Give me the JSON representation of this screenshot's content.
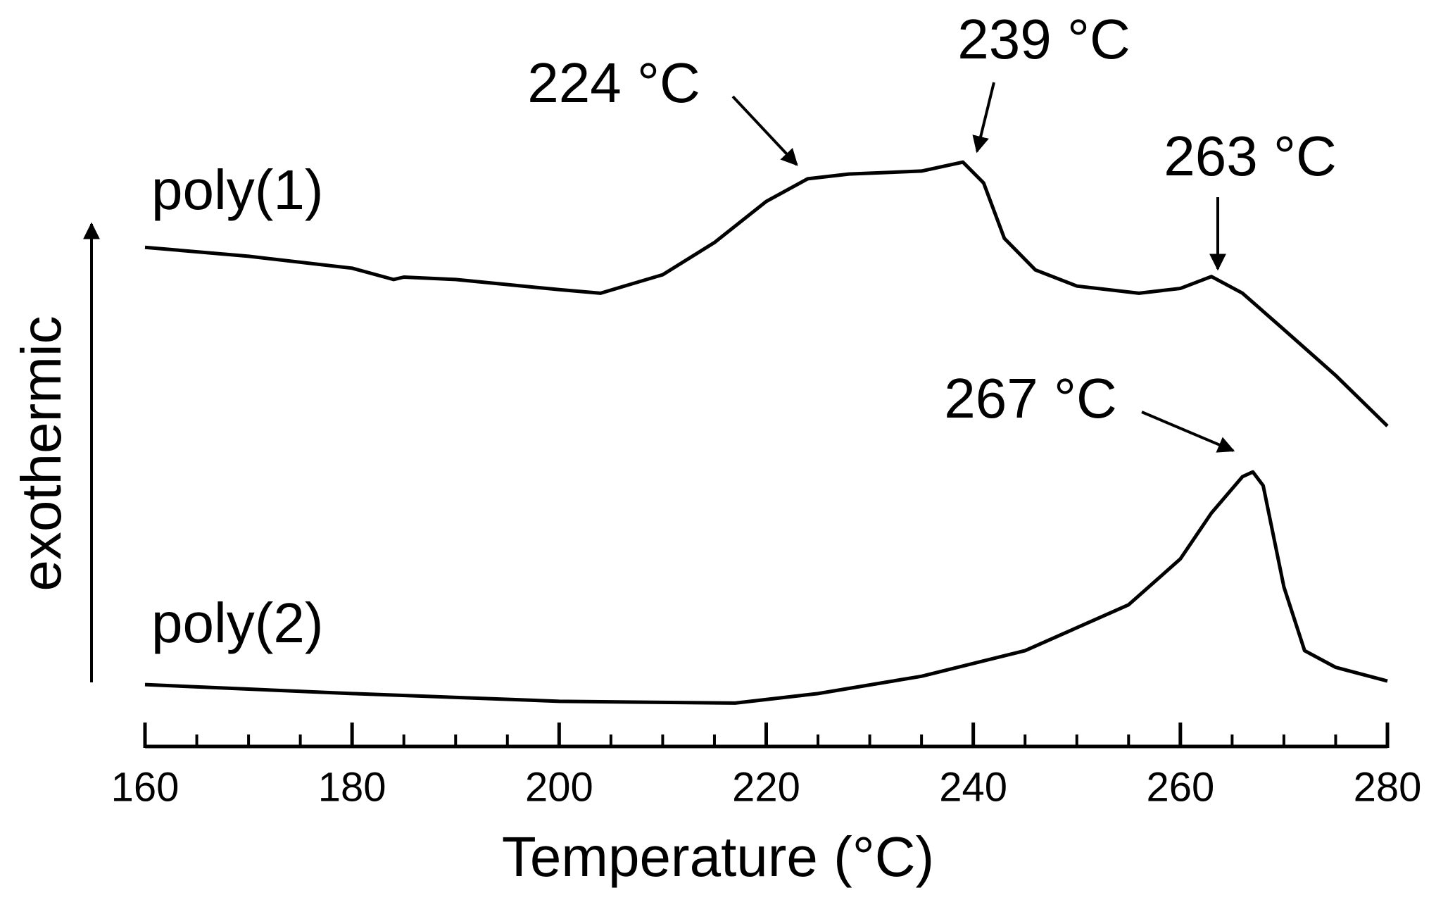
{
  "chart_data": {
    "type": "line",
    "x_label": "Temperature (°C)",
    "y_label": "exothermic",
    "xlim": [
      160,
      280
    ],
    "xticks": [
      160,
      180,
      200,
      220,
      240,
      260,
      280
    ],
    "xticks_minor": [
      165,
      170,
      175,
      185,
      190,
      195,
      205,
      210,
      215,
      225,
      230,
      235,
      245,
      250,
      255,
      265,
      270,
      275
    ],
    "ylim": [
      0,
      100
    ],
    "color": "#000000",
    "series": [
      {
        "name": "poly(1)",
        "color": "#000000",
        "x": [
          160,
          170,
          180,
          184,
          185,
          190,
          200,
          204,
          210,
          215,
          220,
          224,
          228,
          235,
          239,
          241,
          243,
          246,
          250,
          256,
          260,
          263,
          266,
          270,
          275,
          280
        ],
        "values": [
          80,
          78.5,
          76.5,
          74.6,
          75,
          74.6,
          72.9,
          72.3,
          75.4,
          80.8,
          87.7,
          91.5,
          92.3,
          92.8,
          94.3,
          90.8,
          81.5,
          76.2,
          73.5,
          72.3,
          73.1,
          75.1,
          72.3,
          66.2,
          58.5,
          50
        ]
      },
      {
        "name": "poly(2)",
        "color": "#000000",
        "x": [
          160,
          180,
          200,
          217,
          225,
          235,
          245,
          255,
          260,
          263,
          266,
          267,
          268,
          270,
          272,
          275,
          280
        ],
        "values": [
          6.6,
          5.1,
          3.8,
          3.5,
          5.1,
          8,
          12.3,
          20,
          27.7,
          35.4,
          41.5,
          42.3,
          40,
          23,
          12.3,
          9.5,
          7.2
        ]
      }
    ],
    "annotations": [
      {
        "text": "224 °C"
      },
      {
        "text": "239 °C"
      },
      {
        "text": "263 °C"
      },
      {
        "text": "267 °C"
      }
    ]
  }
}
